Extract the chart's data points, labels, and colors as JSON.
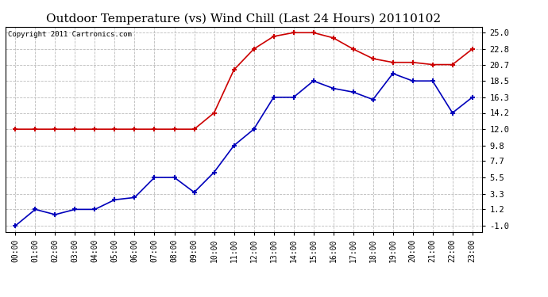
{
  "title": "Outdoor Temperature (vs) Wind Chill (Last 24 Hours) 20110102",
  "copyright": "Copyright 2011 Cartronics.com",
  "hours": [
    "00:00",
    "01:00",
    "02:00",
    "03:00",
    "04:00",
    "05:00",
    "06:00",
    "07:00",
    "08:00",
    "09:00",
    "10:00",
    "11:00",
    "12:00",
    "13:00",
    "14:00",
    "15:00",
    "16:00",
    "17:00",
    "18:00",
    "19:00",
    "20:00",
    "21:00",
    "22:00",
    "23:00"
  ],
  "temp": [
    -1.0,
    1.2,
    0.5,
    1.2,
    1.2,
    2.5,
    2.8,
    5.5,
    5.5,
    3.5,
    6.2,
    9.8,
    12.0,
    16.3,
    16.3,
    18.5,
    17.5,
    17.0,
    16.0,
    19.5,
    18.5,
    18.5,
    14.2,
    16.3
  ],
  "wind_chill": [
    12.0,
    12.0,
    12.0,
    12.0,
    12.0,
    12.0,
    12.0,
    12.0,
    12.0,
    12.0,
    14.2,
    20.0,
    22.8,
    24.5,
    25.0,
    25.0,
    24.3,
    22.8,
    21.5,
    21.0,
    21.0,
    20.7,
    20.7,
    22.8
  ],
  "temp_color": "#0000bb",
  "wind_chill_color": "#cc0000",
  "yticks": [
    -1.0,
    1.2,
    3.3,
    5.5,
    7.7,
    9.8,
    12.0,
    14.2,
    16.3,
    18.5,
    20.7,
    22.8,
    25.0
  ],
  "bg_color": "#ffffff",
  "plot_bg_color": "#ffffff",
  "grid_color": "#bbbbbb",
  "title_fontsize": 11,
  "copyright_fontsize": 6.5,
  "tick_fontsize": 7,
  "ytick_fontsize": 7.5
}
